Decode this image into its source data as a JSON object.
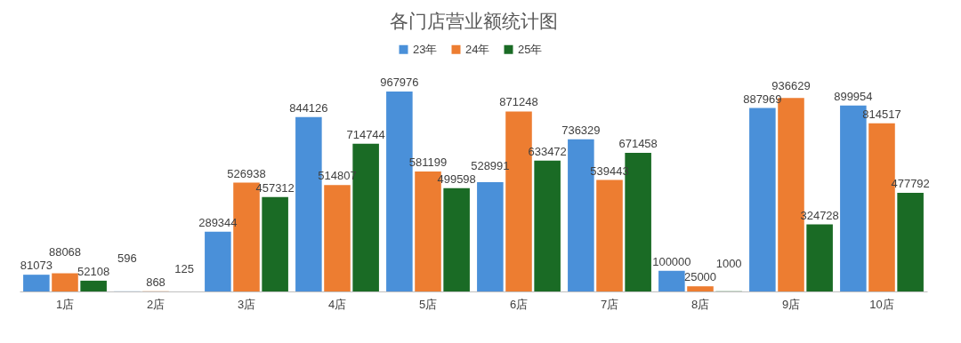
{
  "chart_data": {
    "type": "bar",
    "title": "各门店营业额统计图",
    "legend": "top",
    "data_labels": true,
    "categories": [
      "1店",
      "2店",
      "3店",
      "4店",
      "5店",
      "6店",
      "7店",
      "8店",
      "9店",
      "10店"
    ],
    "series": [
      {
        "name": "23年",
        "color": "#4a90d9",
        "values": [
          81073,
          596,
          289344,
          844126,
          967976,
          528991,
          736329,
          100000,
          887969,
          899954
        ]
      },
      {
        "name": "24年",
        "color": "#ed7d31",
        "values": [
          88068,
          868,
          526938,
          514807,
          581199,
          871248,
          539443,
          25000,
          936629,
          814517
        ]
      },
      {
        "name": "25年",
        "color": "#1a6b25",
        "values": [
          52108,
          125,
          457312,
          714744,
          499598,
          633472,
          671458,
          1000,
          324728,
          477792
        ]
      }
    ]
  }
}
